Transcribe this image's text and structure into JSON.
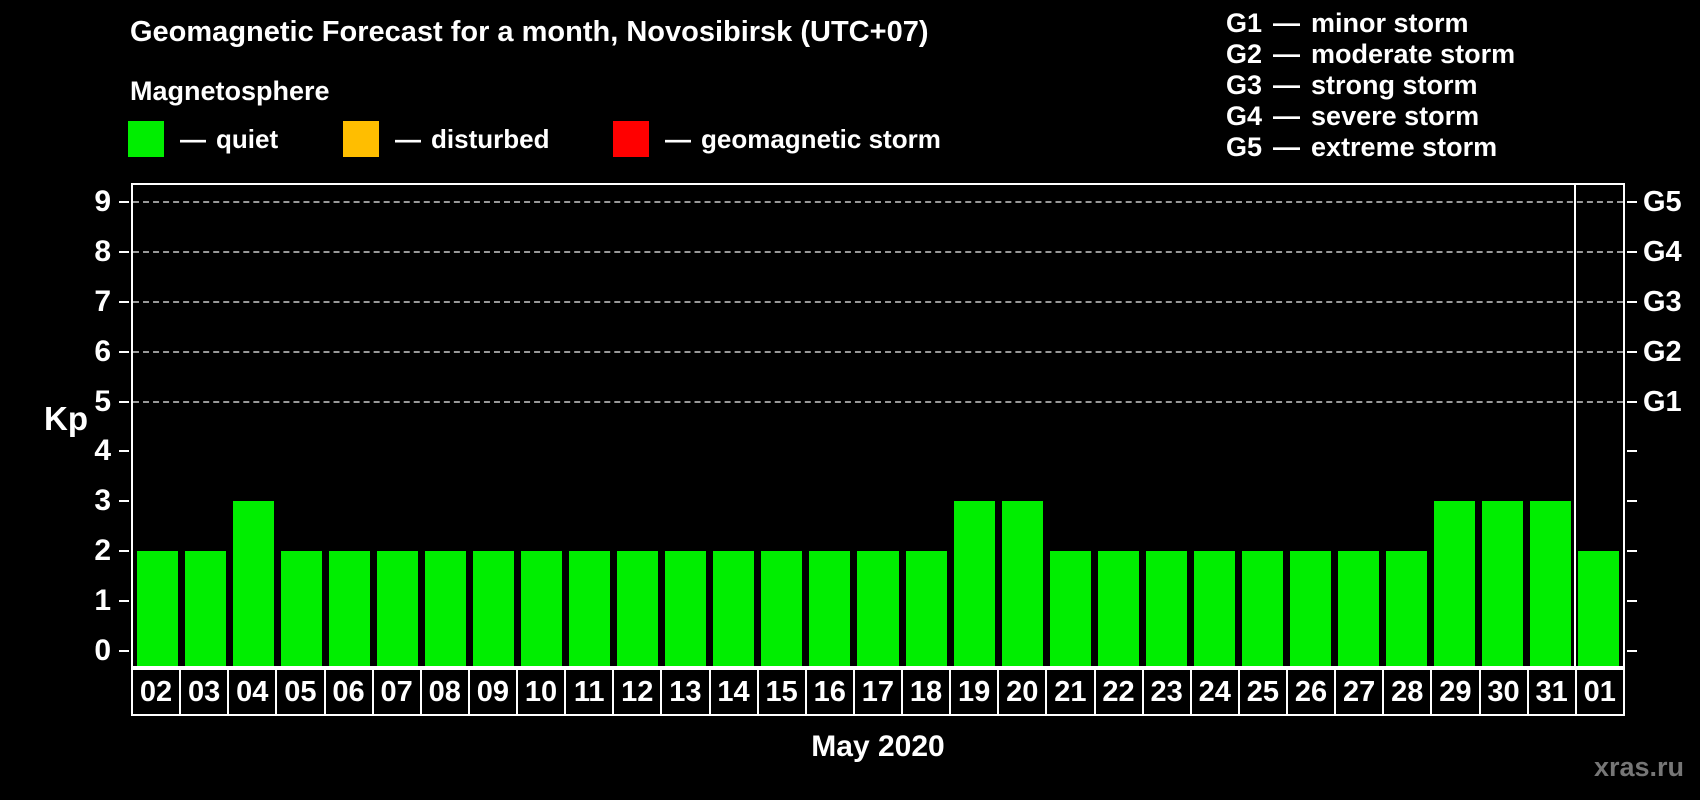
{
  "header": {
    "title": "Geomagnetic Forecast for a month, Novosibirsk (UTC+07)",
    "subtitle": "Magnetosphere",
    "legend": [
      {
        "swatch_color": "#00EE00",
        "dash": "—",
        "label": "quiet"
      },
      {
        "swatch_color": "#FFBE00",
        "dash": "—",
        "label": "disturbed"
      },
      {
        "swatch_color": "#FF0000",
        "dash": "—",
        "label": "geomagnetic storm"
      }
    ]
  },
  "storm_scale_legend": [
    {
      "code": "G1",
      "dash": "—",
      "label": "minor storm"
    },
    {
      "code": "G2",
      "dash": "—",
      "label": "moderate storm"
    },
    {
      "code": "G3",
      "dash": "—",
      "label": "strong storm"
    },
    {
      "code": "G4",
      "dash": "—",
      "label": "severe storm"
    },
    {
      "code": "G5",
      "dash": "—",
      "label": "extreme storm"
    }
  ],
  "chart_data": {
    "type": "bar",
    "title": "Geomagnetic Forecast for a month, Novosibirsk (UTC+07)",
    "ylabel": "Kp",
    "xlabel": "May 2020",
    "categories": [
      "02",
      "03",
      "04",
      "05",
      "06",
      "07",
      "08",
      "09",
      "10",
      "11",
      "12",
      "13",
      "14",
      "15",
      "16",
      "17",
      "18",
      "19",
      "20",
      "21",
      "22",
      "23",
      "24",
      "25",
      "26",
      "27",
      "28",
      "29",
      "30",
      "31",
      "01"
    ],
    "values": [
      2,
      2,
      3,
      2,
      2,
      2,
      2,
      2,
      2,
      2,
      2,
      2,
      2,
      2,
      2,
      2,
      2,
      3,
      3,
      2,
      2,
      2,
      2,
      2,
      2,
      2,
      2,
      3,
      3,
      3,
      2
    ],
    "bar_color": "#00EE00",
    "ylim": [
      0,
      9
    ],
    "yticks": [
      0,
      1,
      2,
      3,
      4,
      5,
      6,
      7,
      8,
      9
    ],
    "gridlines_at": [
      5,
      6,
      7,
      8,
      9
    ],
    "grid_style": "dashed",
    "legend_position": "top",
    "right_axis_labels": [
      {
        "value": 5,
        "label": "G1"
      },
      {
        "value": 6,
        "label": "G2"
      },
      {
        "value": 7,
        "label": "G3"
      },
      {
        "value": 8,
        "label": "G4"
      },
      {
        "value": 9,
        "label": "G5"
      }
    ],
    "month_boundary_index": 30
  },
  "footer": {
    "month_label": "May 2020",
    "watermark": "xras.ru"
  }
}
